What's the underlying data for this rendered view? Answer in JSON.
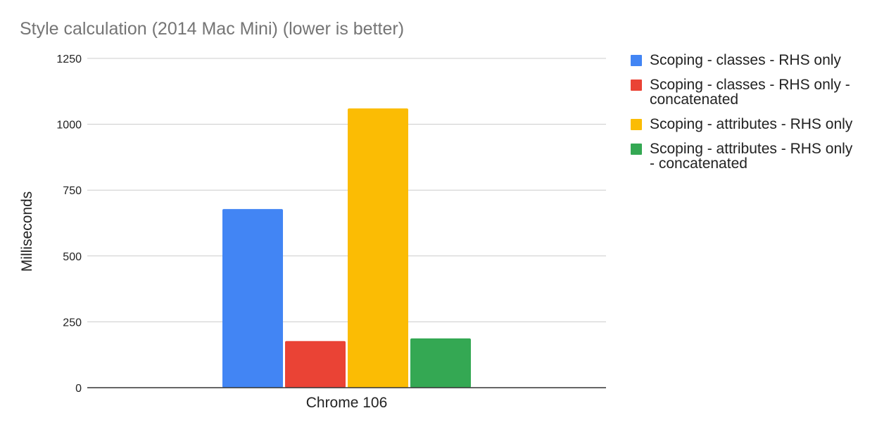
{
  "chart_data": {
    "type": "bar",
    "title": "Style calculation (2014 Mac Mini) (lower is better)",
    "xlabel": "",
    "ylabel": "Milliseconds",
    "categories": [
      "Chrome 106"
    ],
    "yticks": [
      "0",
      "250",
      "500",
      "750",
      "1000",
      "1250"
    ],
    "ylim": [
      0,
      1250
    ],
    "grid": true,
    "legend_position": "right",
    "series": [
      {
        "name": "Scoping - classes - RHS only",
        "values": [
          678
        ],
        "color": "#4285f4"
      },
      {
        "name": "Scoping - classes - RHS only - concatenated",
        "values": [
          177
        ],
        "color": "#ea4335"
      },
      {
        "name": "Scoping - attributes - RHS only",
        "values": [
          1060
        ],
        "color": "#fbbc04"
      },
      {
        "name": "Scoping - attributes - RHS only - concatenated",
        "values": [
          187
        ],
        "color": "#34a853"
      }
    ]
  }
}
